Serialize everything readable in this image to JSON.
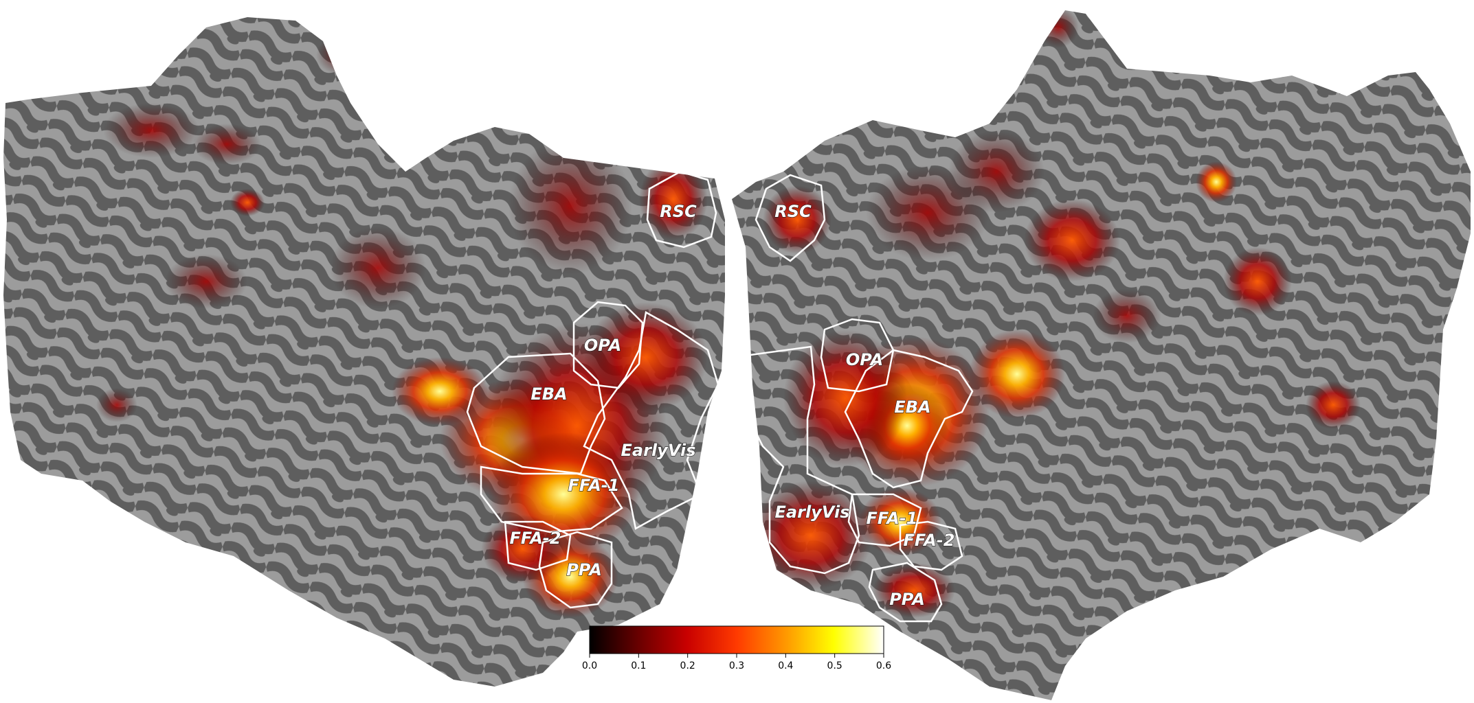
{
  "hemispheres": {
    "left": {
      "rois": [
        {
          "id": "RSC",
          "label": "RSC"
        },
        {
          "id": "OPA",
          "label": "OPA"
        },
        {
          "id": "EBA",
          "label": "EBA"
        },
        {
          "id": "EarlyVis",
          "label": "EarlyVis"
        },
        {
          "id": "FFA-1",
          "label": "FFA-1"
        },
        {
          "id": "FFA-2",
          "label": "FFA-2"
        },
        {
          "id": "PPA",
          "label": "PPA"
        }
      ]
    },
    "right": {
      "rois": [
        {
          "id": "RSC",
          "label": "RSC"
        },
        {
          "id": "OPA",
          "label": "OPA"
        },
        {
          "id": "EBA",
          "label": "EBA"
        },
        {
          "id": "EarlyVis",
          "label": "EarlyVis"
        },
        {
          "id": "FFA-1",
          "label": "FFA-1"
        },
        {
          "id": "FFA-2",
          "label": "FFA-2"
        },
        {
          "id": "PPA",
          "label": "PPA"
        }
      ]
    }
  },
  "colorbar": {
    "colormap": "hot",
    "min": 0.0,
    "max": 0.6,
    "ticks": [
      "0.0",
      "0.1",
      "0.2",
      "0.3",
      "0.4",
      "0.5",
      "0.6"
    ],
    "stops": [
      "#000000",
      "#6b0000",
      "#c80000",
      "#ff3a00",
      "#ff9a00",
      "#ffff00",
      "#ffffff"
    ]
  },
  "colors": {
    "sulci": "#5e5e5e",
    "gyri": "#9c9c9c",
    "roi_outline": "#ffffff"
  }
}
